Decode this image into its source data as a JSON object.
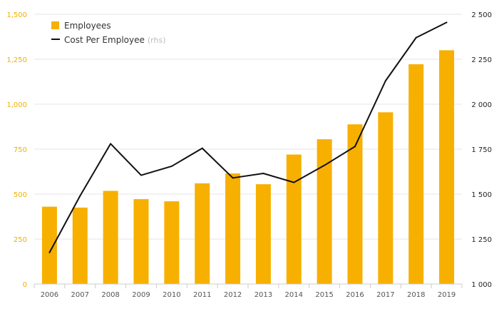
{
  "chart_data": {
    "type": "bar",
    "categories": [
      "2006",
      "2007",
      "2008",
      "2009",
      "2010",
      "2011",
      "2012",
      "2013",
      "2014",
      "2015",
      "2016",
      "2017",
      "2018",
      "2019"
    ],
    "series": [
      {
        "name": "Employees",
        "type": "bar",
        "axis": "left",
        "color": "#f7b000",
        "values": [
          430,
          425,
          518,
          472,
          460,
          560,
          615,
          555,
          720,
          805,
          888,
          955,
          1222,
          1300
        ]
      },
      {
        "name": "Cost Per Employee",
        "name_suffix": "(rhs)",
        "type": "line",
        "axis": "right",
        "color": "#111111",
        "values": [
          1175,
          1490,
          1780,
          1605,
          1655,
          1755,
          1590,
          1615,
          1565,
          1660,
          1765,
          2130,
          2370,
          2455
        ]
      }
    ],
    "y_left": {
      "ylim": [
        0,
        1500
      ],
      "ticks": [
        0,
        250,
        500,
        750,
        1000,
        1250,
        1500
      ],
      "tick_labels": [
        "0",
        "250",
        "500",
        "750",
        "1,000",
        "1,250",
        "1,500"
      ],
      "color": "#f0b000"
    },
    "y_right": {
      "ylim": [
        1000,
        2500
      ],
      "ticks": [
        1000,
        1250,
        1500,
        1750,
        2000,
        2250,
        2500
      ],
      "tick_labels": [
        "1 000",
        "1 250",
        "1 500",
        "1 750",
        "2 000",
        "2 250",
        "2 500"
      ],
      "color": "#222222"
    },
    "title": "",
    "xlabel": "",
    "ylabel": "",
    "grid": true,
    "legend": "top-left"
  }
}
